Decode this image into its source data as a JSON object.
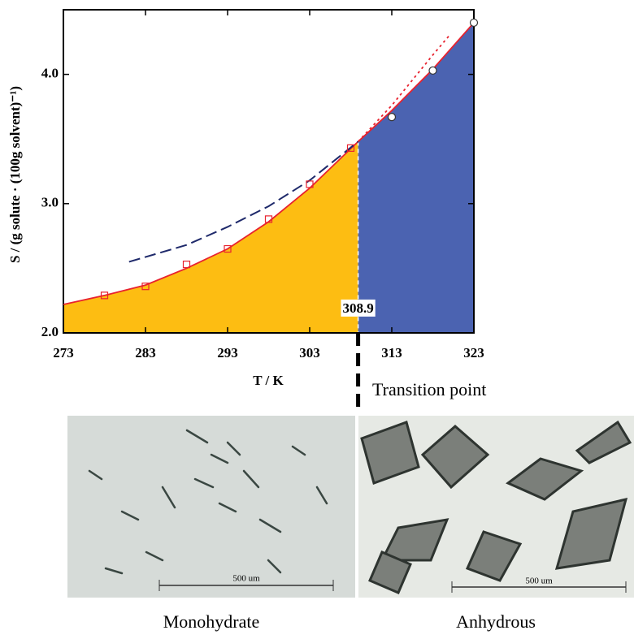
{
  "chart_data": {
    "type": "line",
    "xlabel": "T / K",
    "ylabel": "S / (g solute · (100g solvent)⁻¹)",
    "xlim": [
      273,
      323
    ],
    "xticks": [
      273,
      283,
      293,
      303,
      313,
      323
    ],
    "ylim": [
      2.0,
      4.5
    ],
    "yticks": [
      {
        "value": 2,
        "label": "2.0"
      },
      {
        "value": 3,
        "label": "3.0"
      },
      {
        "value": 4,
        "label": "4.0"
      }
    ],
    "transition": 308.9,
    "transition_label": "Transition point",
    "region_colors": [
      "#fdbd12",
      "#4b63b1"
    ],
    "series": [
      {
        "style": "fill-fit",
        "color": "#e8222e",
        "x": [
          273,
          278,
          283,
          288,
          293,
          298,
          303,
          308.9,
          313,
          318,
          323
        ],
        "values": [
          2.22,
          2.29,
          2.37,
          2.5,
          2.65,
          2.86,
          3.12,
          3.48,
          3.72,
          4.04,
          4.4
        ]
      },
      {
        "style": "dashed",
        "color": "#1f2a6b",
        "x": [
          281,
          288,
          293,
          298,
          303,
          308.9
        ],
        "values": [
          2.55,
          2.68,
          2.82,
          2.98,
          3.18,
          3.48
        ]
      },
      {
        "style": "dotted",
        "color": "#e8222e",
        "x": [
          308.9,
          313,
          318,
          320
        ],
        "values": [
          3.48,
          3.76,
          4.15,
          4.3
        ]
      },
      {
        "style": "squares",
        "color": "#e8222e",
        "x": [
          278,
          283,
          288,
          293,
          298,
          303,
          308
        ],
        "values": [
          2.29,
          2.36,
          2.53,
          2.65,
          2.88,
          3.15,
          3.43
        ]
      },
      {
        "style": "circles",
        "color": "#333333",
        "x": [
          313,
          318,
          323
        ],
        "values": [
          3.67,
          4.03,
          4.4
        ]
      }
    ]
  },
  "images": [
    {
      "caption": "Monohydrate",
      "scale_bar": "500 um"
    },
    {
      "caption": "Anhydrous",
      "scale_bar": "500 um"
    }
  ]
}
